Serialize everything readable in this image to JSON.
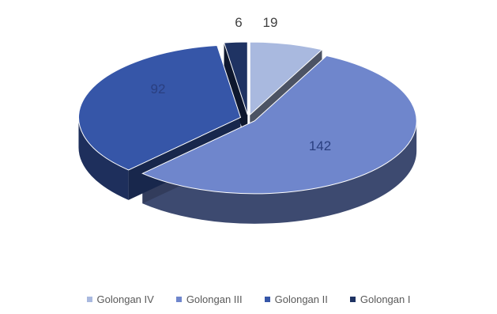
{
  "chart_data": {
    "type": "pie",
    "style": "3d-exploded",
    "title": "",
    "legend_position": "bottom",
    "series": [
      {
        "name": "Golongan IV",
        "value": 19,
        "color": "#A9B9DF",
        "label": "19"
      },
      {
        "name": "Golongan III",
        "value": 142,
        "color": "#6F86CC",
        "label": "142"
      },
      {
        "name": "Golongan II",
        "value": 92,
        "color": "#3656A8",
        "label": "92"
      },
      {
        "name": "Golongan I",
        "value": 6,
        "color": "#1F3363",
        "label": "6"
      }
    ]
  }
}
